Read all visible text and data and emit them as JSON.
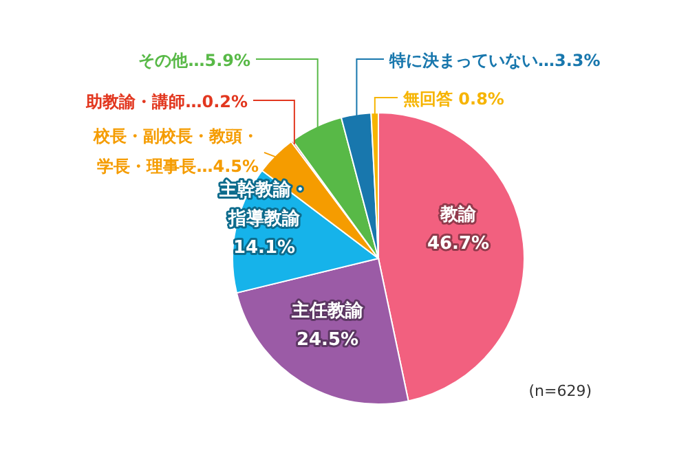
{
  "chart_data": {
    "type": "pie",
    "categories": [
      "教諭",
      "主任教諭",
      "主幹教諭・指導教諭",
      "校長・副校長・教頭・学長・理事長",
      "助教諭・講師",
      "その他",
      "特に決まっていない",
      "無回答"
    ],
    "values": [
      46.7,
      24.5,
      14.1,
      4.5,
      0.2,
      5.9,
      3.3,
      0.8
    ],
    "value_labels": [
      "46.7%",
      "24.5%",
      "14.1%",
      "…4.5%",
      "…0.2%",
      "…5.9%",
      "…3.3%",
      " 0.8%"
    ],
    "colors": [
      "#f2607f",
      "#9b5ba6",
      "#16b3ea",
      "#f59c00",
      "#e2371f",
      "#58b947",
      "#1877ad",
      "#f6b400"
    ],
    "annotations": [
      "(n=629)"
    ]
  }
}
